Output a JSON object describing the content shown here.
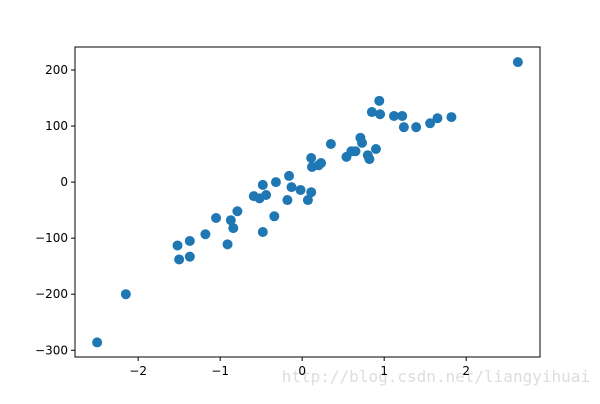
{
  "chart_data": {
    "type": "scatter",
    "color": "#1f77b4",
    "watermark": "http://blog.csdn.net/liangyihuai",
    "xlim": [
      -2.77,
      2.9
    ],
    "ylim": [
      -312,
      241
    ],
    "xticks": [
      {
        "value": -2,
        "label": "−2"
      },
      {
        "value": -1,
        "label": "−1"
      },
      0,
      1,
      2
    ],
    "yticks": [
      {
        "value": -300,
        "label": "−300"
      },
      {
        "value": -200,
        "label": "−200"
      },
      {
        "value": -100,
        "label": "−100"
      },
      0,
      100,
      200
    ],
    "x": [
      -2.5,
      -2.15,
      -1.52,
      -1.5,
      -1.37,
      -1.37,
      -1.18,
      -1.05,
      -0.91,
      -0.87,
      -0.84,
      -0.79,
      -0.59,
      -0.52,
      -0.48,
      -0.48,
      -0.44,
      -0.34,
      -0.32,
      -0.18,
      -0.16,
      -0.13,
      -0.02,
      0.07,
      0.11,
      0.11,
      0.12,
      0.2,
      0.23,
      0.35,
      0.54,
      0.6,
      0.65,
      0.71,
      0.73,
      0.8,
      0.82,
      0.85,
      0.9,
      0.94,
      0.95,
      1.12,
      1.22,
      1.24,
      1.39,
      1.56,
      1.65,
      1.82,
      2.63
    ],
    "values": [
      -286,
      -200,
      -113,
      -138,
      -133,
      -105,
      -93,
      -64,
      -111,
      -68,
      -82,
      -52,
      -25,
      -29,
      -5,
      -89,
      -23,
      -61,
      0,
      -32,
      11,
      -9,
      -14,
      -32,
      -18,
      43,
      27,
      30,
      34,
      68,
      45,
      55,
      55,
      79,
      70,
      48,
      41,
      125,
      59,
      145,
      121,
      118,
      118,
      98,
      98,
      105,
      114,
      116,
      214
    ]
  }
}
